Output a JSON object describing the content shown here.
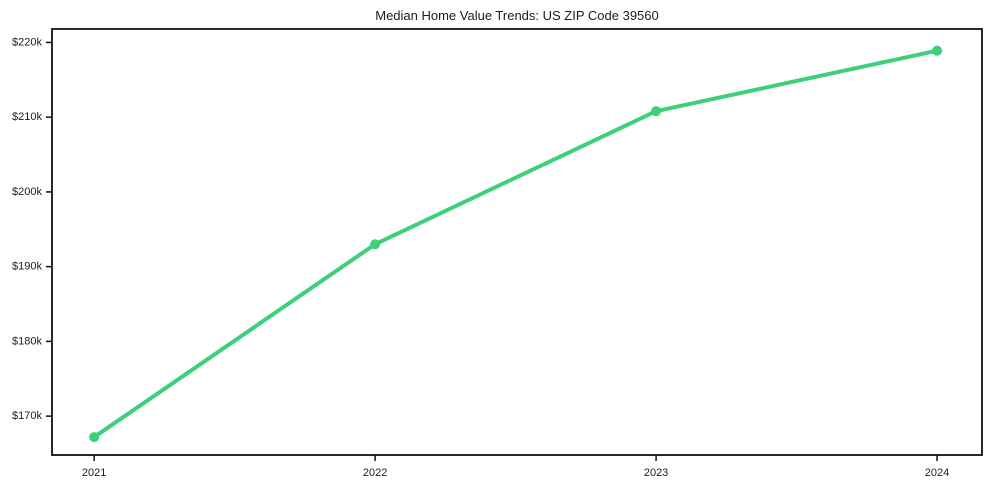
{
  "chart_data": {
    "type": "line",
    "title": "Median Home Value Trends: US ZIP Code 39560",
    "x": [
      2021,
      2022,
      2023,
      2024
    ],
    "x_tick_labels": [
      "2021",
      "2022",
      "2023",
      "2024"
    ],
    "values": [
      167200,
      193000,
      210800,
      218900
    ],
    "y_ticks": [
      170000,
      180000,
      190000,
      200000,
      210000,
      220000
    ],
    "y_tick_labels": [
      "$170k",
      "$180k",
      "$190k",
      "$200k",
      "$210k",
      "$220k"
    ],
    "xlabel": "",
    "ylabel": "",
    "xlim": [
      2020.85,
      2024.16
    ],
    "ylim": [
      164800,
      221800
    ],
    "grid": false,
    "legend": "none",
    "line_color": "#3dcf7a",
    "marker": "circle",
    "marker_color": "#3dcf7a",
    "axis_color": "#111111",
    "text_color": "#1c1c1c",
    "background_color": "#ffffff"
  }
}
